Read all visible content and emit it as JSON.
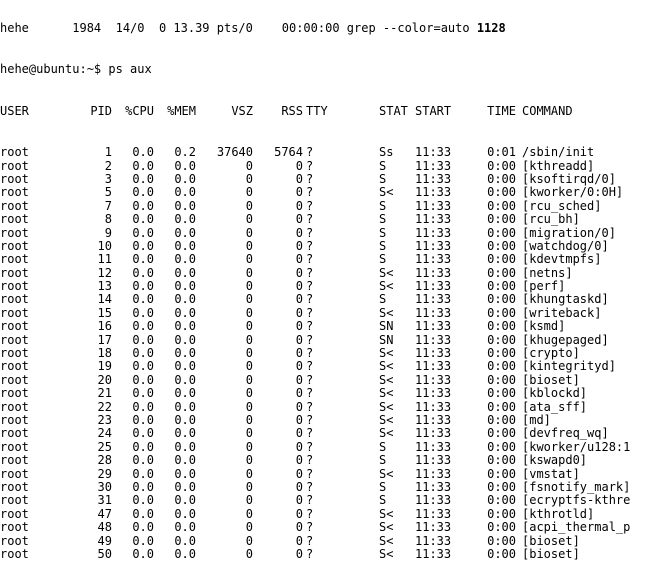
{
  "terminal": {
    "partial_line": "hehe      1984  14/0  0 13.39 pts/0    00:00:00 grep --color=auto ",
    "partial_line_bold": "1128",
    "prompt": "hehe@ubuntu:~$ ",
    "command": "ps aux"
  },
  "table": {
    "headers": {
      "user": "USER",
      "pid": "PID",
      "cpu": "%CPU",
      "mem": "%MEM",
      "vsz": "VSZ",
      "rss": "RSS",
      "tty": "TTY",
      "stat": "STAT",
      "start": "START",
      "time": "TIME",
      "command": "COMMAND"
    },
    "rows": [
      {
        "user": "root",
        "pid": "1",
        "cpu": "0.0",
        "mem": "0.2",
        "vsz": "37640",
        "rss": "5764",
        "tty": "?",
        "stat": "Ss",
        "start": "11:33",
        "time": "0:01",
        "command": "/sbin/init"
      },
      {
        "user": "root",
        "pid": "2",
        "cpu": "0.0",
        "mem": "0.0",
        "vsz": "0",
        "rss": "0",
        "tty": "?",
        "stat": "S",
        "start": "11:33",
        "time": "0:00",
        "command": "[kthreadd]"
      },
      {
        "user": "root",
        "pid": "3",
        "cpu": "0.0",
        "mem": "0.0",
        "vsz": "0",
        "rss": "0",
        "tty": "?",
        "stat": "S",
        "start": "11:33",
        "time": "0:00",
        "command": "[ksoftirqd/0]"
      },
      {
        "user": "root",
        "pid": "5",
        "cpu": "0.0",
        "mem": "0.0",
        "vsz": "0",
        "rss": "0",
        "tty": "?",
        "stat": "S<",
        "start": "11:33",
        "time": "0:00",
        "command": "[kworker/0:0H]"
      },
      {
        "user": "root",
        "pid": "7",
        "cpu": "0.0",
        "mem": "0.0",
        "vsz": "0",
        "rss": "0",
        "tty": "?",
        "stat": "S",
        "start": "11:33",
        "time": "0:00",
        "command": "[rcu_sched]"
      },
      {
        "user": "root",
        "pid": "8",
        "cpu": "0.0",
        "mem": "0.0",
        "vsz": "0",
        "rss": "0",
        "tty": "?",
        "stat": "S",
        "start": "11:33",
        "time": "0:00",
        "command": "[rcu_bh]"
      },
      {
        "user": "root",
        "pid": "9",
        "cpu": "0.0",
        "mem": "0.0",
        "vsz": "0",
        "rss": "0",
        "tty": "?",
        "stat": "S",
        "start": "11:33",
        "time": "0:00",
        "command": "[migration/0]"
      },
      {
        "user": "root",
        "pid": "10",
        "cpu": "0.0",
        "mem": "0.0",
        "vsz": "0",
        "rss": "0",
        "tty": "?",
        "stat": "S",
        "start": "11:33",
        "time": "0:00",
        "command": "[watchdog/0]"
      },
      {
        "user": "root",
        "pid": "11",
        "cpu": "0.0",
        "mem": "0.0",
        "vsz": "0",
        "rss": "0",
        "tty": "?",
        "stat": "S",
        "start": "11:33",
        "time": "0:00",
        "command": "[kdevtmpfs]"
      },
      {
        "user": "root",
        "pid": "12",
        "cpu": "0.0",
        "mem": "0.0",
        "vsz": "0",
        "rss": "0",
        "tty": "?",
        "stat": "S<",
        "start": "11:33",
        "time": "0:00",
        "command": "[netns]"
      },
      {
        "user": "root",
        "pid": "13",
        "cpu": "0.0",
        "mem": "0.0",
        "vsz": "0",
        "rss": "0",
        "tty": "?",
        "stat": "S<",
        "start": "11:33",
        "time": "0:00",
        "command": "[perf]"
      },
      {
        "user": "root",
        "pid": "14",
        "cpu": "0.0",
        "mem": "0.0",
        "vsz": "0",
        "rss": "0",
        "tty": "?",
        "stat": "S",
        "start": "11:33",
        "time": "0:00",
        "command": "[khungtaskd]"
      },
      {
        "user": "root",
        "pid": "15",
        "cpu": "0.0",
        "mem": "0.0",
        "vsz": "0",
        "rss": "0",
        "tty": "?",
        "stat": "S<",
        "start": "11:33",
        "time": "0:00",
        "command": "[writeback]"
      },
      {
        "user": "root",
        "pid": "16",
        "cpu": "0.0",
        "mem": "0.0",
        "vsz": "0",
        "rss": "0",
        "tty": "?",
        "stat": "SN",
        "start": "11:33",
        "time": "0:00",
        "command": "[ksmd]"
      },
      {
        "user": "root",
        "pid": "17",
        "cpu": "0.0",
        "mem": "0.0",
        "vsz": "0",
        "rss": "0",
        "tty": "?",
        "stat": "SN",
        "start": "11:33",
        "time": "0:00",
        "command": "[khugepaged]"
      },
      {
        "user": "root",
        "pid": "18",
        "cpu": "0.0",
        "mem": "0.0",
        "vsz": "0",
        "rss": "0",
        "tty": "?",
        "stat": "S<",
        "start": "11:33",
        "time": "0:00",
        "command": "[crypto]"
      },
      {
        "user": "root",
        "pid": "19",
        "cpu": "0.0",
        "mem": "0.0",
        "vsz": "0",
        "rss": "0",
        "tty": "?",
        "stat": "S<",
        "start": "11:33",
        "time": "0:00",
        "command": "[kintegrityd]"
      },
      {
        "user": "root",
        "pid": "20",
        "cpu": "0.0",
        "mem": "0.0",
        "vsz": "0",
        "rss": "0",
        "tty": "?",
        "stat": "S<",
        "start": "11:33",
        "time": "0:00",
        "command": "[bioset]"
      },
      {
        "user": "root",
        "pid": "21",
        "cpu": "0.0",
        "mem": "0.0",
        "vsz": "0",
        "rss": "0",
        "tty": "?",
        "stat": "S<",
        "start": "11:33",
        "time": "0:00",
        "command": "[kblockd]"
      },
      {
        "user": "root",
        "pid": "22",
        "cpu": "0.0",
        "mem": "0.0",
        "vsz": "0",
        "rss": "0",
        "tty": "?",
        "stat": "S<",
        "start": "11:33",
        "time": "0:00",
        "command": "[ata_sff]"
      },
      {
        "user": "root",
        "pid": "23",
        "cpu": "0.0",
        "mem": "0.0",
        "vsz": "0",
        "rss": "0",
        "tty": "?",
        "stat": "S<",
        "start": "11:33",
        "time": "0:00",
        "command": "[md]"
      },
      {
        "user": "root",
        "pid": "24",
        "cpu": "0.0",
        "mem": "0.0",
        "vsz": "0",
        "rss": "0",
        "tty": "?",
        "stat": "S<",
        "start": "11:33",
        "time": "0:00",
        "command": "[devfreq_wq]"
      },
      {
        "user": "root",
        "pid": "25",
        "cpu": "0.0",
        "mem": "0.0",
        "vsz": "0",
        "rss": "0",
        "tty": "?",
        "stat": "S",
        "start": "11:33",
        "time": "0:00",
        "command": "[kworker/u128:1"
      },
      {
        "user": "root",
        "pid": "28",
        "cpu": "0.0",
        "mem": "0.0",
        "vsz": "0",
        "rss": "0",
        "tty": "?",
        "stat": "S",
        "start": "11:33",
        "time": "0:00",
        "command": "[kswapd0]"
      },
      {
        "user": "root",
        "pid": "29",
        "cpu": "0.0",
        "mem": "0.0",
        "vsz": "0",
        "rss": "0",
        "tty": "?",
        "stat": "S<",
        "start": "11:33",
        "time": "0:00",
        "command": "[vmstat]"
      },
      {
        "user": "root",
        "pid": "30",
        "cpu": "0.0",
        "mem": "0.0",
        "vsz": "0",
        "rss": "0",
        "tty": "?",
        "stat": "S",
        "start": "11:33",
        "time": "0:00",
        "command": "[fsnotify_mark]"
      },
      {
        "user": "root",
        "pid": "31",
        "cpu": "0.0",
        "mem": "0.0",
        "vsz": "0",
        "rss": "0",
        "tty": "?",
        "stat": "S",
        "start": "11:33",
        "time": "0:00",
        "command": "[ecryptfs-kthre"
      },
      {
        "user": "root",
        "pid": "47",
        "cpu": "0.0",
        "mem": "0.0",
        "vsz": "0",
        "rss": "0",
        "tty": "?",
        "stat": "S<",
        "start": "11:33",
        "time": "0:00",
        "command": "[kthrotld]"
      },
      {
        "user": "root",
        "pid": "48",
        "cpu": "0.0",
        "mem": "0.0",
        "vsz": "0",
        "rss": "0",
        "tty": "?",
        "stat": "S<",
        "start": "11:33",
        "time": "0:00",
        "command": "[acpi_thermal_p"
      },
      {
        "user": "root",
        "pid": "49",
        "cpu": "0.0",
        "mem": "0.0",
        "vsz": "0",
        "rss": "0",
        "tty": "?",
        "stat": "S<",
        "start": "11:33",
        "time": "0:00",
        "command": "[bioset]"
      },
      {
        "user": "root",
        "pid": "50",
        "cpu": "0.0",
        "mem": "0.0",
        "vsz": "0",
        "rss": "0",
        "tty": "?",
        "stat": "S<",
        "start": "11:33",
        "time": "0:00",
        "command": "[bioset]"
      }
    ]
  }
}
